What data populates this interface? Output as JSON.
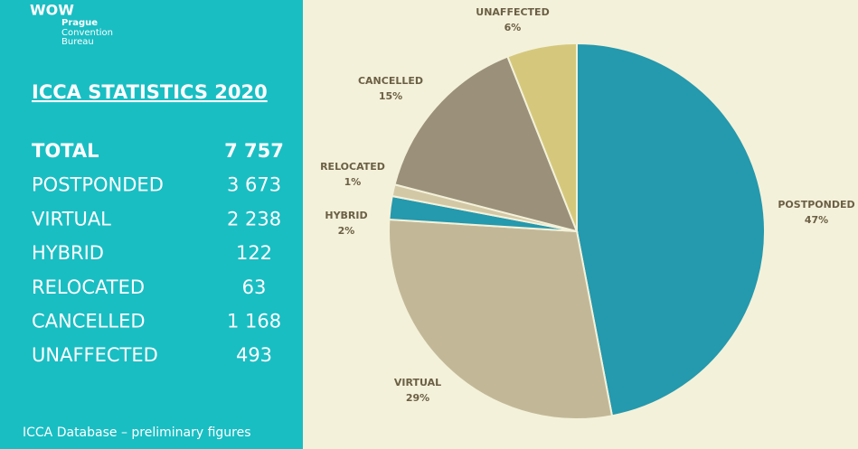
{
  "logo": {
    "mark": "WOW",
    "lines": [
      "Prague",
      "Convention",
      "Bureau"
    ]
  },
  "panel": {
    "title": "ICCA STATISTICS 2020",
    "rows": [
      [
        "TOTAL",
        "7 757"
      ],
      [
        "POSTPONDED",
        "3 673"
      ],
      [
        "VIRTUAL",
        "2 238"
      ],
      [
        "HYBRID",
        "122"
      ],
      [
        "RELOCATED",
        "63"
      ],
      [
        "CANCELLED",
        "1 168"
      ],
      [
        "UNAFFECTED",
        "493"
      ]
    ],
    "footer": "ICCA Database – preliminary figures"
  },
  "chart_data": {
    "type": "pie",
    "categories": [
      "POSTPONDED",
      "VIRTUAL",
      "HYBRID",
      "RELOCATED",
      "CANCELLED",
      "UNAFFECTED"
    ],
    "values": [
      47,
      29,
      2,
      1,
      15,
      6
    ],
    "value_labels": [
      "47%",
      "29%",
      "2%",
      "1%",
      "15%",
      "6%"
    ],
    "colors": [
      "#2599ad",
      "#c2b898",
      "#2599ad",
      "#d3c8a6",
      "#9b917a",
      "#d5c87c"
    ]
  }
}
